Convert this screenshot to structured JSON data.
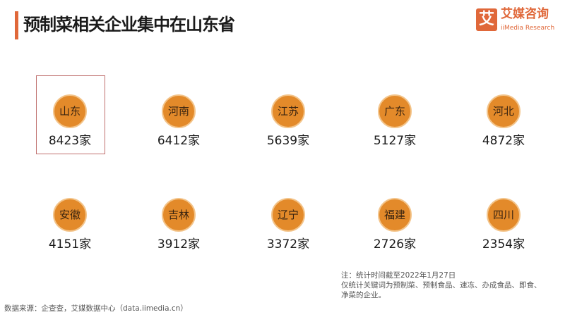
{
  "title": "预制菜相关企业集中在山东省",
  "logo": {
    "mark": "艾",
    "cn": "艾媒咨询",
    "en": "iiMedia Research"
  },
  "accent": "#e0683a",
  "circle_color": "#e38a2a",
  "highlight_border": "#c0706e",
  "chart_data": {
    "type": "table",
    "unit": "家",
    "categories": [
      "山东",
      "河南",
      "江苏",
      "广东",
      "河北",
      "安徽",
      "吉林",
      "辽宁",
      "福建",
      "四川"
    ],
    "values": [
      8423,
      6412,
      5639,
      5127,
      4872,
      4151,
      3912,
      3372,
      2726,
      2354
    ],
    "labels": [
      "8423家",
      "6412家",
      "5639家",
      "5127家",
      "4872家",
      "4151家",
      "3912家",
      "3372家",
      "2726家",
      "2354家"
    ],
    "highlighted": "山东"
  },
  "note": {
    "line1": "注：统计时间截至2022年1月27日",
    "line2": "仅统计关键词为预制菜、预制食品、速冻、办成食品、即食、净菜的企业。"
  },
  "source": "数据来源：企查查，艾媒数据中心（data.iimedia.cn）"
}
